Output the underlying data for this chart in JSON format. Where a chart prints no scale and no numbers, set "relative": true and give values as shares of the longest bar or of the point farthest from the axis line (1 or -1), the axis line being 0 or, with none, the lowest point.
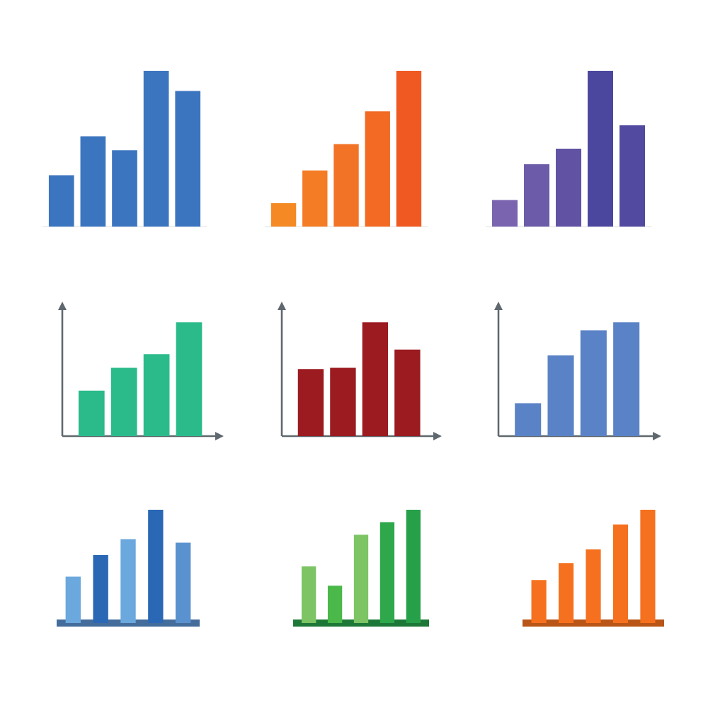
{
  "chart_data": [
    {
      "type": "bar",
      "relative": true,
      "categories": [
        null,
        null,
        null,
        null,
        null
      ],
      "values": [
        0.33,
        0.58,
        0.49,
        1,
        0.87
      ],
      "color": "#3c75bf"
    },
    {
      "type": "bar",
      "relative": true,
      "categories": [
        null,
        null,
        null,
        null,
        null
      ],
      "values": [
        0.15,
        0.36,
        0.53,
        0.74,
        1
      ],
      "colors": [
        "#f58a25",
        "#f47c25",
        "#f37326",
        "#f26a24",
        "#f05a22"
      ]
    },
    {
      "type": "bar",
      "relative": true,
      "categories": [
        null,
        null,
        null,
        null,
        null
      ],
      "values": [
        0.17,
        0.4,
        0.5,
        1,
        0.65
      ],
      "colors": [
        "#7a64b0",
        "#6c5ba8",
        "#6152a3",
        "#4b479f",
        "#524aa0"
      ]
    },
    {
      "type": "bar",
      "relative": true,
      "categories": [
        null,
        null,
        null,
        null
      ],
      "values": [
        0.4,
        0.6,
        0.72,
        1
      ],
      "color": "#2bbb8a"
    },
    {
      "type": "bar",
      "relative": true,
      "categories": [
        null,
        null,
        null,
        null
      ],
      "values": [
        0.59,
        0.6,
        1,
        0.76
      ],
      "color": "#9b1b20"
    },
    {
      "type": "bar",
      "relative": true,
      "categories": [
        null,
        null,
        null,
        null
      ],
      "values": [
        0.29,
        0.71,
        0.93,
        1
      ],
      "color": "#5a82c6"
    },
    {
      "type": "bar",
      "relative": true,
      "categories": [
        null,
        null,
        null,
        null,
        null
      ],
      "values": [
        0.41,
        0.6,
        0.74,
        1,
        0.71
      ],
      "colors": [
        "#6aa8dd",
        "#2a68b5",
        "#6aa8dd",
        "#2a68b5",
        "#5a92d0"
      ]
    },
    {
      "type": "bar",
      "relative": true,
      "categories": [
        null,
        null,
        null,
        null,
        null
      ],
      "values": [
        0.5,
        0.33,
        0.78,
        0.89,
        1
      ],
      "colors": [
        "#7cc464",
        "#4bb84a",
        "#7cc464",
        "#2ea84a",
        "#27a04a"
      ]
    },
    {
      "type": "bar",
      "relative": true,
      "categories": [
        null,
        null,
        null,
        null,
        null
      ],
      "values": [
        0.38,
        0.53,
        0.65,
        0.87,
        1
      ],
      "color": "#f5711f"
    }
  ]
}
